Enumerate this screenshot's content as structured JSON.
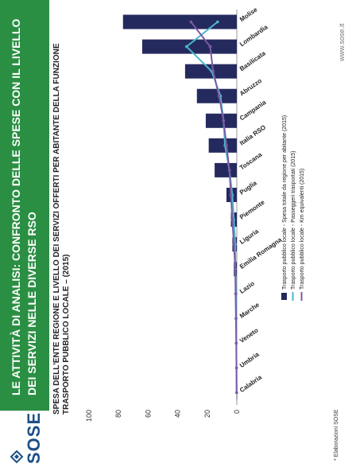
{
  "header": {
    "title": "Le attività di analisi: confronto delle spese con il livello dei servizi nelle diverse RSO",
    "logo": "SOSE",
    "brand_color": "#2a8f43"
  },
  "footer": {
    "source": "* Elaborazioni SOSE",
    "url": "www.sose.it"
  },
  "chart_data": {
    "type": "bar",
    "title": "SPESA DELL'ENTE REGIONE E LIVELLO DEI SERVIZI OFFERTI PER ABITANTE DELLA FUNZIONE TRASPORTO PUBBLICO LOCALE – (2015)",
    "categories": [
      "Molise",
      "Lombardia",
      "Basilicata",
      "Abruzzo",
      "Campania",
      "Italia RSO",
      "Toscana",
      "Puglia",
      "Piemonte",
      "Liguria",
      "Emilia Romagna",
      "Lazio",
      "Marche",
      "Veneto",
      "Umbria",
      "Calabria"
    ],
    "ylim": [
      0,
      100
    ],
    "yticks": [
      0,
      20,
      40,
      60,
      80,
      100
    ],
    "grid": false,
    "legend_position": "bottom",
    "series": [
      {
        "name": "Trasporto pubblico locale - Spesa totale da regione per abitante (2015)",
        "kind": "bar",
        "color": "#252a5e",
        "values": [
          77,
          64,
          35,
          27,
          21,
          19,
          15,
          7,
          4,
          3,
          2,
          1,
          0.5,
          0.3,
          0.2,
          0.1
        ]
      },
      {
        "name": "Trasporto pubblico locale - Passeggeri trasportati (2015)",
        "kind": "line",
        "color": "#4bb7cf",
        "values": [
          13,
          34,
          17,
          11,
          9,
          8,
          5,
          3,
          2,
          1,
          1,
          0.5,
          0.4,
          0.3,
          0.2,
          0.1
        ]
      },
      {
        "name": "Trasporto pubblico locale - Km equivalenti (2015)",
        "kind": "line",
        "color": "#7b5aa6",
        "values": [
          31,
          18,
          16,
          12,
          9,
          7,
          5,
          4,
          3,
          2,
          1,
          0.8,
          0.6,
          0.4,
          0.2,
          0.1
        ]
      }
    ]
  }
}
